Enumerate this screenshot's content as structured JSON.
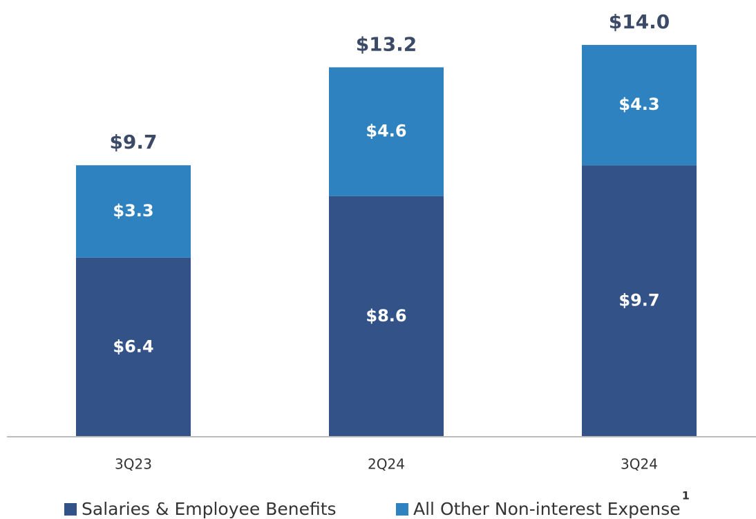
{
  "chart_data": {
    "type": "stacked_bar",
    "categories": [
      "3Q23",
      "2Q24",
      "3Q24"
    ],
    "series": [
      {
        "name": "Salaries & Employee Benefits",
        "color": "#335288",
        "values": [
          6.4,
          8.6,
          9.7
        ],
        "value_labels": [
          "$6.4",
          "$8.6",
          "$9.7"
        ]
      },
      {
        "name": "All Other Non-interest Expense",
        "name_note": "1",
        "color": "#2e82c0",
        "values": [
          3.3,
          4.6,
          4.3
        ],
        "value_labels": [
          "$3.3",
          "$4.6",
          "$4.3"
        ]
      }
    ],
    "totals": {
      "values": [
        9.7,
        13.2,
        14.0
      ],
      "value_labels": [
        "$9.7",
        "$13.2",
        "$14.0"
      ]
    },
    "ylim": [
      0,
      14
    ],
    "legend": "bottom"
  }
}
